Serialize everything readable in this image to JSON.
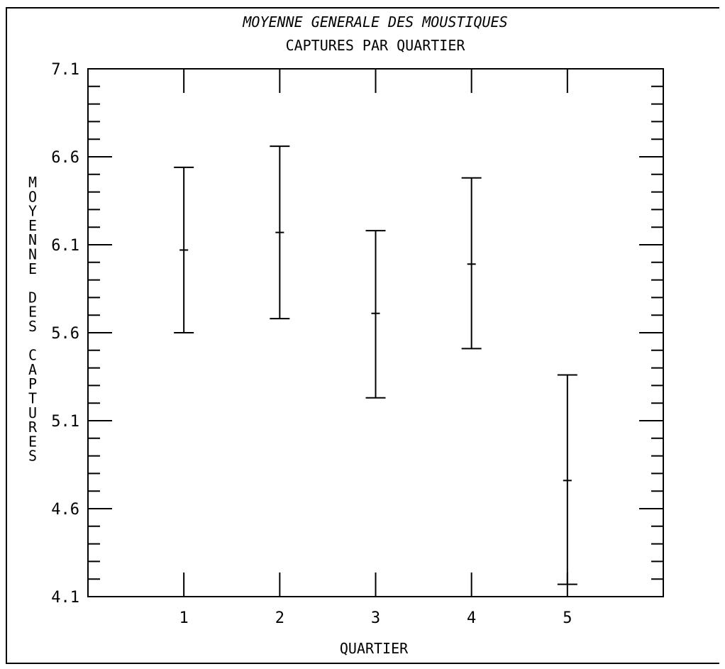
{
  "chart_data": {
    "type": "errorbar",
    "title_line1": "MOYENNE GENERALE DES MOUSTIQUES",
    "title_line2": "CAPTURES PAR QUARTIER",
    "xlabel": "QUARTIER",
    "ylabel": "MOYENNE DES CAPTURES",
    "categories": [
      "1",
      "2",
      "3",
      "4",
      "5"
    ],
    "yticks": [
      "7.1",
      "6.6",
      "6.1",
      "5.6",
      "5.1",
      "4.6",
      "4.1"
    ],
    "ylim": [
      4.1,
      7.1
    ],
    "xlim": [
      0,
      6
    ],
    "y_minor_step": 0.1,
    "series": [
      {
        "points": [
          {
            "x": 1,
            "mean": 6.07,
            "lower": 5.6,
            "upper": 6.54
          },
          {
            "x": 2,
            "mean": 6.17,
            "lower": 5.68,
            "upper": 6.66
          },
          {
            "x": 3,
            "mean": 5.71,
            "lower": 5.23,
            "upper": 6.18
          },
          {
            "x": 4,
            "mean": 5.99,
            "lower": 5.51,
            "upper": 6.48
          },
          {
            "x": 5,
            "mean": 4.76,
            "lower": 4.17,
            "upper": 5.36
          }
        ]
      }
    ],
    "grid": false,
    "legend": "none"
  }
}
